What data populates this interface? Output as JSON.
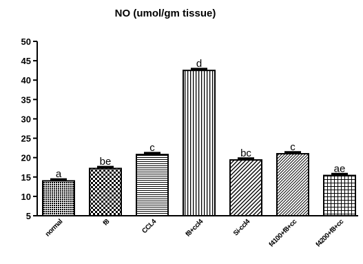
{
  "chart_data": {
    "type": "bar",
    "title": "NO (umol/gm tissue)",
    "xlabel": "",
    "ylabel": "",
    "ylim": [
      5,
      50
    ],
    "yticks": [
      5,
      10,
      15,
      20,
      25,
      30,
      35,
      40,
      45,
      50
    ],
    "grid": false,
    "legend": "none",
    "categories": [
      "normal",
      "f8",
      "CCL4",
      "f8+ccl4",
      "Si-ccl4",
      "f4100+f8+cc",
      "f4200+f8+cc"
    ],
    "values": [
      14.0,
      17.2,
      20.8,
      42.5,
      19.4,
      21.0,
      15.4
    ],
    "errors": [
      0.4,
      0.4,
      0.4,
      0.4,
      0.4,
      0.4,
      0.4
    ],
    "significance_letters": [
      "a",
      "be",
      "c",
      "d",
      "bc",
      "c",
      "ae"
    ],
    "patterns": [
      "dots",
      "checker",
      "hlines",
      "vlines",
      "diag-right",
      "diag-right-dense",
      "grid"
    ]
  }
}
